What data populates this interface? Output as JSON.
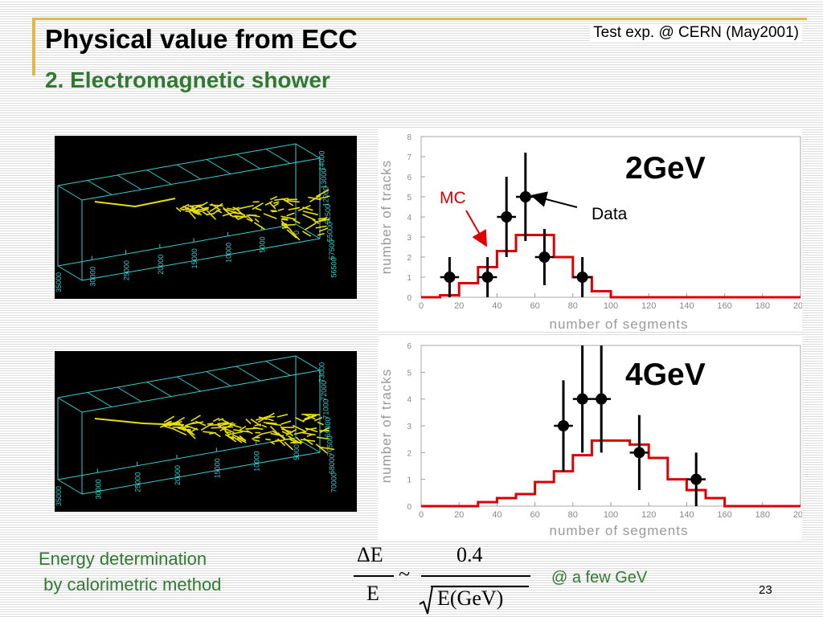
{
  "slide": {
    "title": "Physical value from ECC",
    "subtitle": "2. Electromagnetic shower",
    "corner_note": "Test exp. @ CERN (May2001)",
    "page_number": "23",
    "bottom_left": [
      "Energy determination",
      " by calorimetric method"
    ],
    "formula": {
      "delta_e": "ΔE",
      "e": "E",
      "tilde": "~",
      "numerator": "0.4",
      "denominator": "E(GeV)"
    },
    "few_gev": "@ a few GeV",
    "colors": {
      "title_green": "#2e7a2e",
      "accent_gold": "#e0b84a",
      "mc_red": "#dd0000",
      "shower_yellow": "#e8e000",
      "frame_cyan": "#30d0d0"
    }
  },
  "shower_displays": [
    {
      "x_ticks": [
        "35000",
        "30000",
        "25000",
        "20000",
        "15000",
        "10000",
        "5000",
        "0"
      ],
      "side_ticks": [
        "14000",
        "13000",
        "12000",
        "52500",
        "55000",
        "57500",
        "56500"
      ]
    },
    {
      "x_ticks": [
        "35000",
        "30000",
        "25000",
        "20000",
        "15000",
        "10000",
        "5000"
      ],
      "side_ticks": [
        "73000",
        "72000",
        "71000",
        "69000",
        "70500",
        "68000",
        "70000"
      ]
    }
  ],
  "chart_data": [
    {
      "type": "bar",
      "title": "2GeV",
      "xlabel": "number of segments",
      "ylabel": "number of tracks",
      "xlim": [
        0,
        200
      ],
      "ylim": [
        0,
        8
      ],
      "x_ticks": [
        0,
        20,
        40,
        60,
        80,
        100,
        120,
        140,
        160,
        180,
        200
      ],
      "y_ticks": [
        0,
        1,
        2,
        3,
        4,
        5,
        6,
        7,
        8
      ],
      "annotations": {
        "mc": "MC",
        "data": "Data"
      },
      "series": [
        {
          "name": "MC",
          "kind": "histogram",
          "bin_width": 10,
          "bin_edges": [
            0,
            10,
            20,
            30,
            40,
            50,
            60,
            70,
            80,
            90,
            100,
            110,
            120,
            130,
            140,
            150,
            160,
            170,
            180,
            190,
            200
          ],
          "values": [
            0,
            0.1,
            0.7,
            1.5,
            2.3,
            3.1,
            3.1,
            2.0,
            1.0,
            0.3,
            0,
            0,
            0,
            0,
            0,
            0,
            0,
            0,
            0,
            0
          ]
        },
        {
          "name": "Data",
          "kind": "points",
          "x": [
            15,
            35,
            45,
            55,
            65,
            85
          ],
          "y": [
            1,
            1,
            4,
            5,
            2,
            1
          ],
          "yerr_low": [
            1,
            1,
            2,
            2.2,
            1.4,
            1
          ],
          "yerr_high": [
            1,
            1,
            2,
            2.2,
            1.4,
            1
          ]
        }
      ]
    },
    {
      "type": "bar",
      "title": "4GeV",
      "xlabel": "number of segments",
      "ylabel": "number of tracks",
      "xlim": [
        0,
        200
      ],
      "ylim": [
        0,
        6
      ],
      "x_ticks": [
        0,
        20,
        40,
        60,
        80,
        100,
        120,
        140,
        160,
        180,
        200
      ],
      "y_ticks": [
        0,
        1,
        2,
        3,
        4,
        5,
        6
      ],
      "series": [
        {
          "name": "MC",
          "kind": "histogram",
          "bin_width": 10,
          "bin_edges": [
            0,
            10,
            20,
            30,
            40,
            50,
            60,
            70,
            80,
            90,
            100,
            110,
            120,
            130,
            140,
            150,
            160,
            170,
            180,
            190,
            200
          ],
          "values": [
            0,
            0,
            0,
            0.15,
            0.3,
            0.45,
            0.9,
            1.3,
            1.9,
            2.45,
            2.45,
            2.3,
            1.8,
            1.0,
            0.6,
            0.3,
            0,
            0,
            0,
            0
          ]
        },
        {
          "name": "Data",
          "kind": "points",
          "x": [
            75,
            85,
            95,
            115,
            145
          ],
          "y": [
            3,
            4,
            4,
            2,
            1
          ],
          "yerr_low": [
            1.7,
            2,
            2,
            1.4,
            1
          ],
          "yerr_high": [
            1.7,
            2,
            2,
            1.4,
            1
          ]
        }
      ]
    }
  ]
}
